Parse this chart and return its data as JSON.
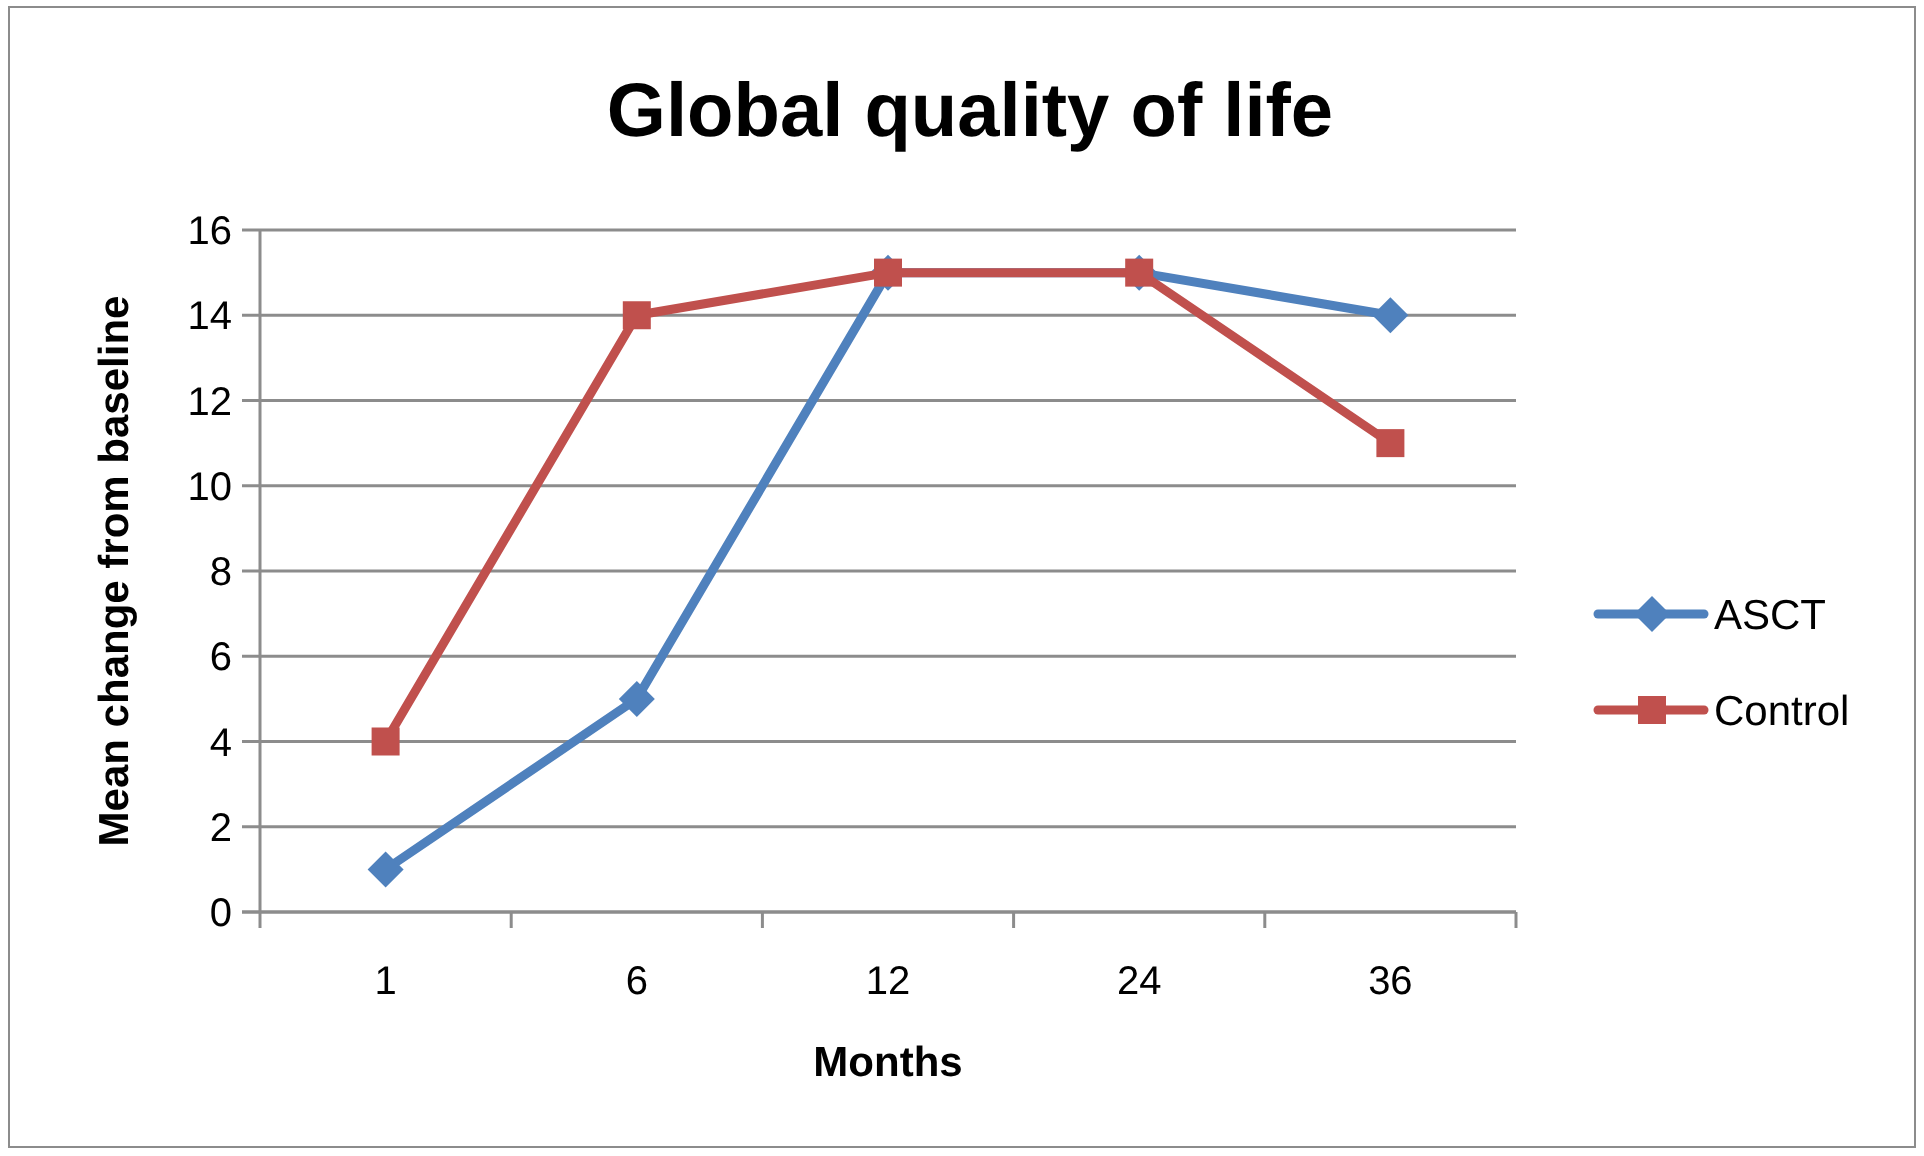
{
  "chart_data": {
    "type": "line",
    "title": "Global quality of life",
    "xlabel": "Months",
    "ylabel": "Mean change from baseline",
    "categories": [
      "1",
      "6",
      "12",
      "24",
      "36"
    ],
    "series": [
      {
        "name": "ASCT",
        "color": "#4f81bd",
        "marker": "diamond",
        "values": [
          1,
          5,
          15,
          15,
          14
        ]
      },
      {
        "name": "Control",
        "color": "#c0504d",
        "marker": "square",
        "values": [
          4,
          14,
          15,
          15,
          11
        ]
      }
    ],
    "ylim": [
      0,
      16
    ],
    "yticks": [
      0,
      2,
      4,
      6,
      8,
      10,
      12,
      14,
      16
    ],
    "grid": "y",
    "legend": "right",
    "line_style": "solid"
  }
}
